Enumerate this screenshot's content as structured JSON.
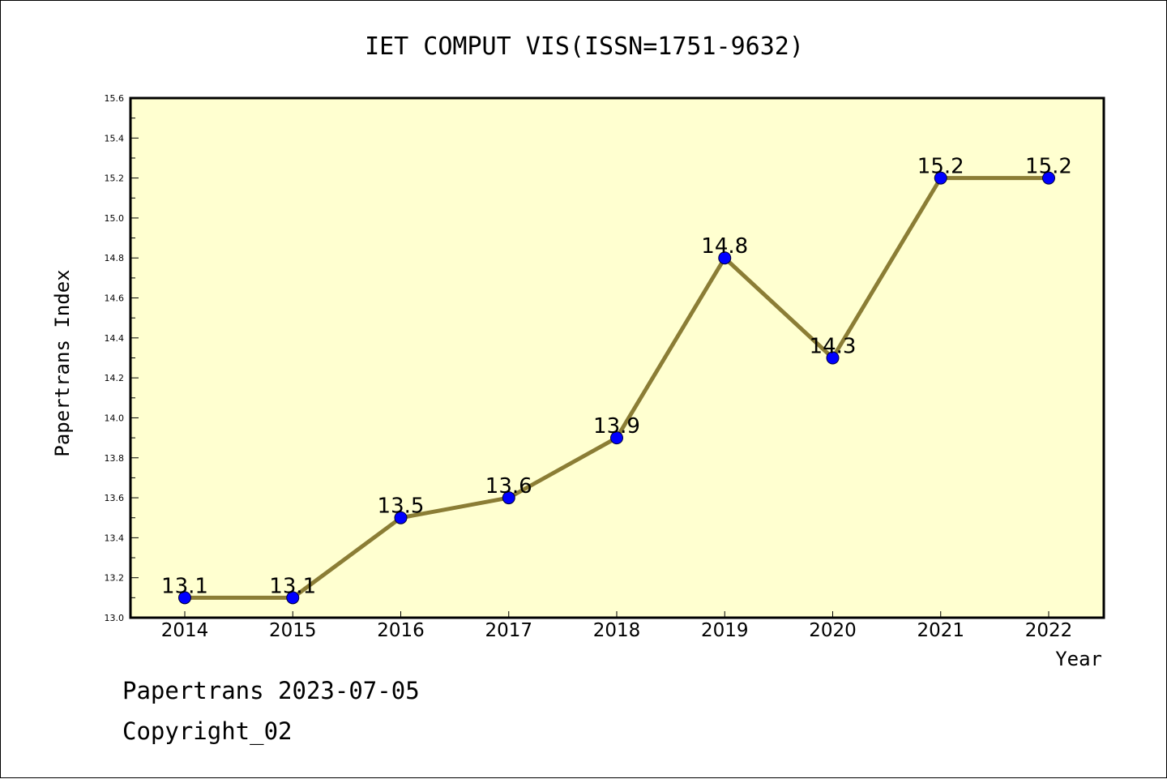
{
  "chart_data": {
    "type": "line",
    "title": "IET COMPUT VIS(ISSN=1751-9632)",
    "xlabel": "Year",
    "ylabel": "Papertrans Index",
    "categories": [
      "2014",
      "2015",
      "2016",
      "2017",
      "2018",
      "2019",
      "2020",
      "2021",
      "2022"
    ],
    "values": [
      13.1,
      13.1,
      13.5,
      13.6,
      13.9,
      14.8,
      14.3,
      15.2,
      15.2
    ],
    "data_labels": [
      "13.1",
      "13.1",
      "13.5",
      "13.6",
      "13.9",
      "14.8",
      "14.3",
      "15.2",
      "15.2"
    ],
    "ylim": [
      13.0,
      15.6
    ],
    "yticks": [
      "13.0",
      "13.2",
      "13.4",
      "13.6",
      "13.8",
      "14.0",
      "14.2",
      "14.4",
      "14.6",
      "14.8",
      "15.0",
      "15.2",
      "15.4",
      "15.6"
    ],
    "grid": false,
    "colors": {
      "plot_background": "#ffffd0",
      "line": "#8b7d35",
      "marker": "#0000ff"
    }
  },
  "footer": {
    "date_line": "Papertrans 2023-07-05",
    "copyright_line": "Copyright_02"
  }
}
